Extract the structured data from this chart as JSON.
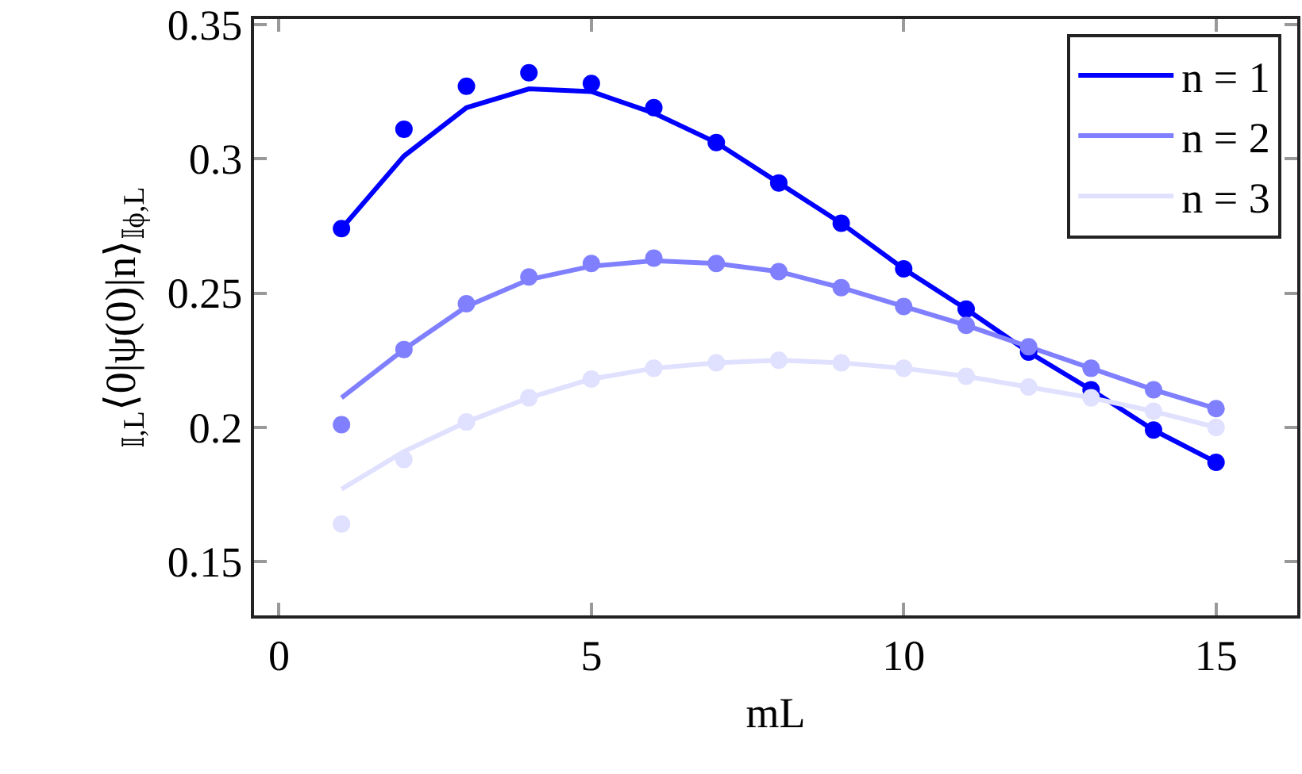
{
  "chart_data": {
    "type": "line",
    "xlabel": "mL",
    "ylabel": "$_{𝕀,L}$⟨0|ψ(0)|n⟩$_{𝕀ϕ,L}$",
    "x": [
      1,
      2,
      3,
      4,
      5,
      6,
      7,
      8,
      9,
      10,
      11,
      12,
      13,
      14,
      15
    ],
    "series": [
      {
        "name": "n = 1",
        "color": "#0000ff",
        "type": "line",
        "marker": "none",
        "values": [
          0.274,
          0.301,
          0.319,
          0.326,
          0.325,
          0.317,
          0.306,
          0.291,
          0.276,
          0.259,
          0.244,
          0.228,
          0.214,
          0.199,
          0.187
        ]
      },
      {
        "name": "n = 2",
        "color": "#8080ff",
        "type": "line",
        "marker": "none",
        "values": [
          0.211,
          0.229,
          0.245,
          0.255,
          0.26,
          0.262,
          0.261,
          0.258,
          0.252,
          0.245,
          0.238,
          0.23,
          0.222,
          0.214,
          0.207
        ]
      },
      {
        "name": "n = 3",
        "color": "#e0e0ff",
        "type": "line",
        "marker": "none",
        "values": [
          0.177,
          0.191,
          0.202,
          0.211,
          0.218,
          0.222,
          0.224,
          0.225,
          0.224,
          0.222,
          0.219,
          0.215,
          0.211,
          0.206,
          0.2
        ]
      },
      {
        "color": "#0000ff",
        "type": "scatter",
        "marker": "circle",
        "values": [
          0.274,
          0.311,
          0.327,
          0.332,
          0.328,
          0.319,
          0.306,
          0.291,
          0.276,
          0.259,
          0.244,
          0.228,
          0.214,
          0.199,
          0.187
        ]
      },
      {
        "color": "#8080ff",
        "type": "scatter",
        "marker": "circle",
        "values": [
          0.201,
          0.229,
          0.246,
          0.256,
          0.261,
          0.263,
          0.261,
          0.258,
          0.252,
          0.245,
          0.238,
          0.23,
          0.222,
          0.214,
          0.207
        ]
      },
      {
        "color": "#e0e0ff",
        "type": "scatter",
        "marker": "circle",
        "values": [
          0.164,
          0.188,
          0.202,
          0.211,
          0.218,
          0.222,
          0.224,
          0.225,
          0.224,
          0.222,
          0.219,
          0.215,
          0.211,
          0.206,
          0.2
        ]
      }
    ],
    "xlim": [
      -0.4,
      16.3
    ],
    "xticks": [
      0,
      5,
      10,
      15
    ],
    "ylim": [
      0.13,
      0.352
    ],
    "yticks": [
      {
        "value": 0.15,
        "label": "0.15"
      },
      {
        "value": 0.2,
        "label": "0.2"
      },
      {
        "value": 0.25,
        "label": "0.25"
      },
      {
        "value": 0.3,
        "label": "0.3"
      },
      {
        "value": 0.35,
        "label": "0.35"
      }
    ],
    "grid": false,
    "legend": "top right"
  }
}
